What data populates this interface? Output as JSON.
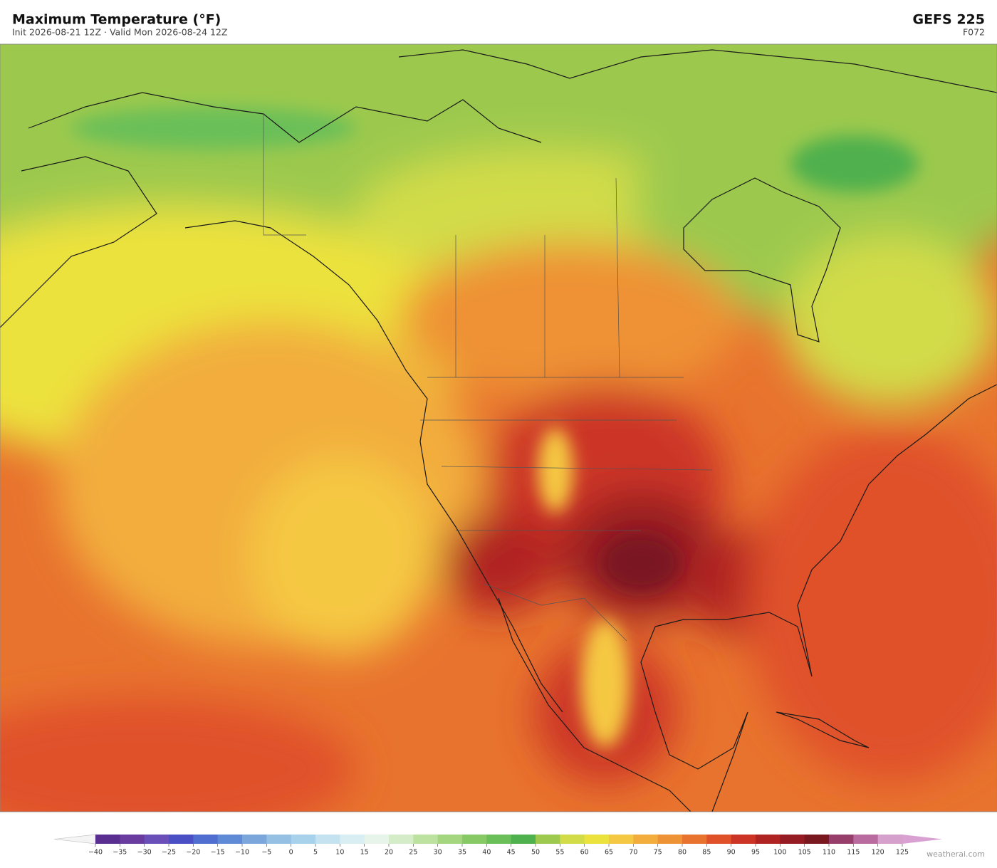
{
  "header": {
    "title": "Maximum Temperature  (°F)",
    "subtitle": "Init 2026-08-21 12Z   ·   Valid Mon 2026-08-24 12Z",
    "model": "GEFS  225",
    "forecast_hour": "F072"
  },
  "colorbar": {
    "ticks": [
      {
        "value": -40,
        "label": "−40"
      },
      {
        "value": -35,
        "label": "−35"
      },
      {
        "value": -30,
        "label": "−30"
      },
      {
        "value": -25,
        "label": "−25"
      },
      {
        "value": -20,
        "label": "−20"
      },
      {
        "value": -15,
        "label": "−15"
      },
      {
        "value": -10,
        "label": "−10"
      },
      {
        "value": -5,
        "label": "−5"
      },
      0,
      5,
      10,
      15,
      20,
      25,
      30,
      35,
      40,
      45,
      50,
      55,
      60,
      65,
      70,
      75,
      80,
      85,
      90,
      95,
      100,
      105,
      110,
      115,
      120,
      125
    ],
    "colors": [
      "#5a2d91",
      "#6a3ca0",
      "#6a4fb8",
      "#4b4fc4",
      "#4f6ed0",
      "#5f8ad6",
      "#7aa6dc",
      "#95c0e3",
      "#a8d2ec",
      "#c4e2f0",
      "#d8eef2",
      "#e6f4ea",
      "#d4ecc8",
      "#bde2a0",
      "#a3d67e",
      "#86c965",
      "#6bbf58",
      "#4fb04e",
      "#9cc94e",
      "#d2dc48",
      "#ece23e",
      "#f5c843",
      "#f2ad3d",
      "#ee9236",
      "#e8732e",
      "#e0512a",
      "#cc3426",
      "#b02323",
      "#941c22",
      "#7a1820",
      "#973f6a",
      "#b96a9e",
      "#d6a0cc"
    ],
    "under_color": "#f4f4f4",
    "over_color": "#d9a0d2"
  },
  "footer": {
    "credit": "weatherai.com"
  }
}
